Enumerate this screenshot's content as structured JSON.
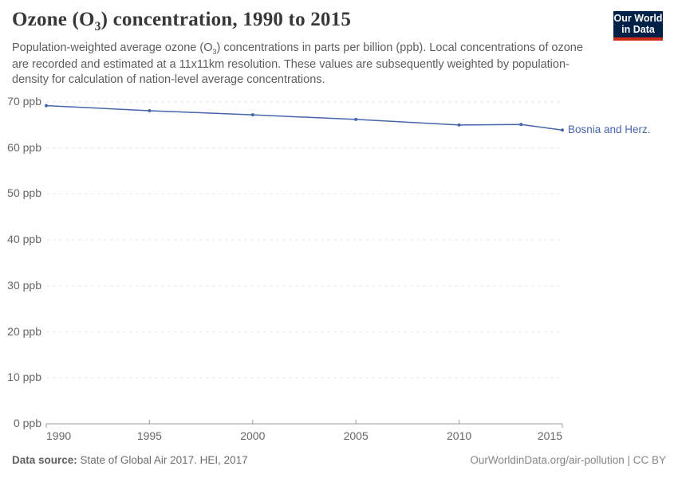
{
  "header": {
    "title": {
      "pre": "Ozone (O",
      "sub": "3",
      "post": ") concentration, 1990 to 2015"
    },
    "subtitle": {
      "pre": "Population-weighted average ozone (O",
      "sub": "3",
      "post": ") concentrations in parts per billion (ppb). Local concentrations of ozone are recorded and estimated at a 11x11km resolution. These values are subsequently weighted by population-density for calculation of nation-level average concentrations."
    },
    "logo": {
      "line1": "Our World",
      "line2": "in Data",
      "bg_color": "#002147",
      "stripe_color": "#CE2B19",
      "text_color": "#ffffff"
    }
  },
  "chart_data": {
    "type": "line",
    "title": "Ozone (O₃) concentration, 1990 to 2015",
    "series": [
      {
        "name": "Bosnia and Herz.",
        "color": "#4666AA",
        "x": [
          1990,
          1995,
          2000,
          2005,
          2010,
          2013,
          2015
        ],
        "y": [
          69.2,
          68.1,
          67.2,
          66.2,
          65.0,
          65.1,
          63.9
        ]
      }
    ],
    "x_ticks": [
      1990,
      1995,
      2000,
      2005,
      2010,
      2015
    ],
    "y_ticks": [
      0,
      10,
      20,
      30,
      40,
      50,
      60,
      70
    ],
    "y_tick_suffix": " ppb",
    "xlim": [
      1990,
      2015
    ],
    "ylim": [
      0,
      70
    ],
    "grid": "horizontal-dashed",
    "legend_position": "line-end-label",
    "grid_color": "#e6e6e6",
    "axis_color": "#999999",
    "tick_label_color": "#666666"
  },
  "footer": {
    "source_label": "Data source:",
    "source_value": " State of Global Air 2017. HEI, 2017",
    "credit": "OurWorldinData.org/air-pollution | CC BY"
  }
}
